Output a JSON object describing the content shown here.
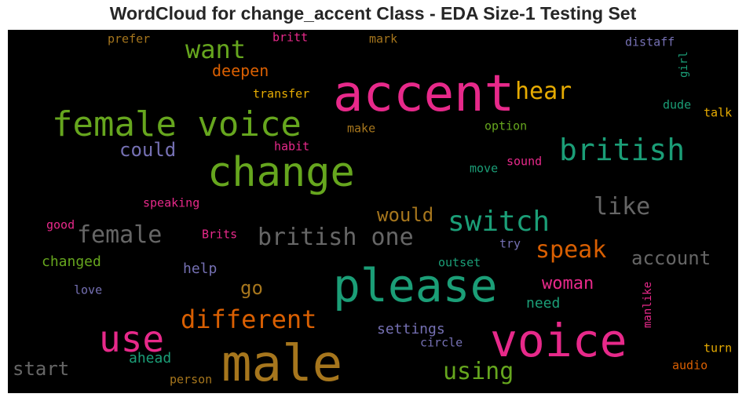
{
  "title": "WordCloud for change_accent Class - EDA Size-1 Testing Set",
  "colors": {
    "pink": "#e7298a",
    "gold": "#a6761d",
    "green": "#1b9e77",
    "olive": "#66a61e",
    "orange": "#d95f02",
    "purple": "#7570b3",
    "gray": "#666666",
    "yellow": "#e6ab02"
  },
  "words": [
    {
      "text": "accent",
      "color": "#e7298a"
    },
    {
      "text": "male",
      "color": "#a6761d"
    },
    {
      "text": "voice",
      "color": "#e7298a"
    },
    {
      "text": "please",
      "color": "#1b9e77"
    },
    {
      "text": "change",
      "color": "#66a61e"
    },
    {
      "text": "female voice",
      "color": "#66a61e"
    },
    {
      "text": "use",
      "color": "#e7298a"
    },
    {
      "text": "british",
      "color": "#1b9e77"
    },
    {
      "text": "british one",
      "color": "#666666"
    },
    {
      "text": "switch",
      "color": "#1b9e77"
    },
    {
      "text": "different",
      "color": "#d95f02"
    },
    {
      "text": "female",
      "color": "#666666"
    },
    {
      "text": "want",
      "color": "#66a61e"
    },
    {
      "text": "speak",
      "color": "#d95f02"
    },
    {
      "text": "hear",
      "color": "#e6ab02"
    },
    {
      "text": "like",
      "color": "#666666"
    },
    {
      "text": "using",
      "color": "#66a61e"
    },
    {
      "text": "account",
      "color": "#666666"
    },
    {
      "text": "would",
      "color": "#a6761d"
    },
    {
      "text": "start",
      "color": "#666666"
    },
    {
      "text": "could",
      "color": "#7570b3"
    },
    {
      "text": "woman",
      "color": "#e7298a"
    },
    {
      "text": "go",
      "color": "#a6761d"
    },
    {
      "text": "deepen",
      "color": "#d95f02"
    },
    {
      "text": "settings",
      "color": "#7570b3"
    },
    {
      "text": "need",
      "color": "#1b9e77"
    },
    {
      "text": "changed",
      "color": "#66a61e"
    },
    {
      "text": "ahead",
      "color": "#1b9e77"
    },
    {
      "text": "help",
      "color": "#7570b3"
    },
    {
      "text": "transfer",
      "color": "#e6ab02"
    },
    {
      "text": "option",
      "color": "#66a61e"
    },
    {
      "text": "make",
      "color": "#a6761d"
    },
    {
      "text": "habit",
      "color": "#e7298a"
    },
    {
      "text": "sound",
      "color": "#e7298a"
    },
    {
      "text": "move",
      "color": "#1b9e77"
    },
    {
      "text": "speaking",
      "color": "#e7298a"
    },
    {
      "text": "Brits",
      "color": "#e7298a"
    },
    {
      "text": "good",
      "color": "#e7298a"
    },
    {
      "text": "outset",
      "color": "#1b9e77"
    },
    {
      "text": "try",
      "color": "#7570b3"
    },
    {
      "text": "love",
      "color": "#7570b3"
    },
    {
      "text": "circle",
      "color": "#7570b3"
    },
    {
      "text": "person",
      "color": "#a6761d"
    },
    {
      "text": "prefer",
      "color": "#a6761d"
    },
    {
      "text": "britt",
      "color": "#e7298a"
    },
    {
      "text": "mark",
      "color": "#a6761d"
    },
    {
      "text": "distaff",
      "color": "#7570b3"
    },
    {
      "text": "girl",
      "color": "#1b9e77"
    },
    {
      "text": "dude",
      "color": "#1b9e77"
    },
    {
      "text": "talk",
      "color": "#e6ab02"
    },
    {
      "text": "turn",
      "color": "#e6ab02"
    },
    {
      "text": "audio",
      "color": "#d95f02"
    },
    {
      "text": "manlike",
      "color": "#e7298a"
    }
  ]
}
